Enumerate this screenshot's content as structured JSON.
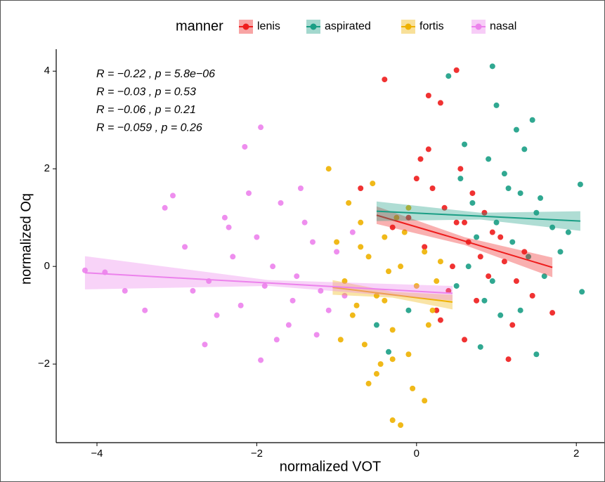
{
  "chart_data": {
    "type": "scatter",
    "x_label": "normalized VOT",
    "y_label": "normalized Oq",
    "legend_title": "manner",
    "legend": "top",
    "xlim": [
      -4.51,
      2.35
    ],
    "ylim": [
      -3.61,
      4.45
    ],
    "xticks": [
      {
        "value": -4,
        "label": "−4"
      },
      {
        "value": -2,
        "label": "−2"
      },
      0,
      2
    ],
    "yticks": [
      {
        "value": -2,
        "label": "−2"
      },
      0,
      2,
      4
    ],
    "grid": false,
    "series": [
      {
        "name": "lenis",
        "color": "#ee1c1c",
        "annotation": "R = −0.22 , p = 5.8e−06",
        "x": [
          -0.4,
          0.5,
          0.15,
          0.3,
          1.15,
          1.7,
          -0.7,
          0.6,
          0.05,
          0.2,
          0.35,
          0.5,
          0.65,
          0.8,
          0.95,
          1.1,
          1.25,
          0.4,
          0.1,
          -0.1,
          0.7,
          0.9,
          1.05,
          0.25,
          0.55,
          0.75,
          1.35,
          -0.3,
          0.0,
          0.45,
          0.85,
          1.2,
          0.6,
          0.3,
          0.15,
          1.45
        ],
        "y": [
          3.83,
          4.02,
          3.5,
          3.35,
          -1.9,
          -0.95,
          1.6,
          -1.5,
          2.2,
          1.6,
          1.2,
          0.9,
          0.5,
          0.2,
          0.7,
          0.1,
          -0.3,
          -0.5,
          0.4,
          1.0,
          1.5,
          -0.2,
          0.6,
          -0.9,
          2.0,
          -0.7,
          0.3,
          0.8,
          1.8,
          0.0,
          1.1,
          -1.2,
          0.9,
          -1.1,
          2.4,
          -0.6
        ],
        "fit": {
          "x": [
            -0.5,
            0.6,
            1.7
          ],
          "y": [
            1.05,
            0.52,
            -0.02
          ],
          "lower": [
            0.87,
            0.44,
            -0.22
          ],
          "upper": [
            1.23,
            0.6,
            0.18
          ]
        }
      },
      {
        "name": "aspirated",
        "color": "#1a9e85",
        "annotation": "R = −0.03 , p = 0.53",
        "x": [
          0.95,
          0.4,
          2.05,
          2.07,
          -0.35,
          -0.5,
          0.8,
          1.5,
          0.6,
          0.9,
          1.1,
          1.3,
          1.5,
          1.7,
          0.7,
          1.0,
          1.2,
          1.4,
          1.6,
          0.5,
          0.85,
          1.05,
          1.25,
          1.45,
          1.8,
          0.75,
          1.15,
          1.35,
          0.65,
          0.95,
          1.55,
          1.9,
          0.55,
          1.0,
          1.3,
          -0.1
        ],
        "y": [
          4.1,
          3.9,
          1.68,
          -0.52,
          -1.75,
          -1.2,
          -1.65,
          -1.8,
          2.5,
          2.2,
          1.9,
          1.5,
          1.1,
          0.8,
          1.3,
          0.9,
          0.5,
          0.2,
          -0.2,
          -0.4,
          -0.7,
          -1.0,
          2.8,
          3.0,
          0.3,
          0.6,
          1.6,
          2.4,
          0.0,
          -0.3,
          1.4,
          0.7,
          1.8,
          3.3,
          -0.9,
          -0.9
        ],
        "fit": {
          "x": [
            -0.5,
            0.8,
            2.05
          ],
          "y": [
            1.13,
            1.03,
            0.93
          ],
          "lower": [
            0.93,
            0.96,
            0.73
          ],
          "upper": [
            1.33,
            1.1,
            1.13
          ]
        }
      },
      {
        "name": "fortis",
        "color": "#eeb100",
        "annotation": "R = −0.06 , p = 0.21",
        "x": [
          -1.1,
          -0.2,
          -0.3,
          0.1,
          -0.6,
          -1.0,
          -0.9,
          -0.8,
          -0.7,
          -0.6,
          -0.5,
          -0.4,
          -0.3,
          -0.2,
          -0.1,
          0.0,
          0.1,
          0.2,
          0.3,
          -0.85,
          -0.65,
          -0.45,
          -0.25,
          -0.05,
          0.15,
          -0.55,
          -0.35,
          -0.15,
          -0.75,
          -0.95,
          0.25,
          -0.5,
          -0.3,
          -0.1,
          -0.7,
          -0.4
        ],
        "y": [
          2.0,
          -3.25,
          -3.15,
          -2.75,
          -2.4,
          0.5,
          -0.3,
          -1.0,
          0.9,
          0.2,
          -0.6,
          0.6,
          -1.3,
          0.0,
          -1.8,
          -0.4,
          0.3,
          -0.9,
          0.1,
          1.3,
          -1.6,
          -2.0,
          1.0,
          -2.5,
          -1.2,
          1.7,
          -0.1,
          0.7,
          -0.8,
          -1.5,
          -0.3,
          -2.2,
          -1.9,
          1.2,
          0.4,
          -0.7
        ],
        "fit": {
          "x": [
            -1.05,
            -0.3,
            0.45
          ],
          "y": [
            -0.43,
            -0.58,
            -0.73
          ],
          "lower": [
            -0.58,
            -0.64,
            -0.88
          ],
          "upper": [
            -0.28,
            -0.52,
            -0.58
          ]
        }
      },
      {
        "name": "nasal",
        "color": "#ec82ec",
        "annotation": "R = −0.059 , p = 0.26",
        "x": [
          -4.15,
          -3.9,
          -3.65,
          -3.4,
          -3.15,
          -3.05,
          -2.15,
          -1.95,
          -2.65,
          -1.95,
          -2.9,
          -2.6,
          -2.4,
          -2.2,
          -2.0,
          -1.8,
          -1.6,
          -1.4,
          -1.2,
          -1.0,
          -2.5,
          -2.3,
          -2.1,
          -1.9,
          -1.7,
          -1.5,
          -1.3,
          -1.1,
          -0.9,
          -2.8,
          -1.75,
          -1.45,
          -1.25,
          -0.8,
          -2.35,
          -1.55
        ],
        "y": [
          -0.08,
          -0.12,
          -0.5,
          -0.9,
          1.2,
          1.45,
          2.45,
          2.85,
          -1.6,
          -1.92,
          0.4,
          -0.3,
          1.0,
          -0.8,
          0.6,
          0.0,
          -1.2,
          0.9,
          -0.5,
          0.3,
          -1.0,
          0.2,
          1.5,
          -0.4,
          1.3,
          -0.2,
          0.5,
          -0.9,
          -0.6,
          -0.5,
          -1.5,
          1.6,
          -1.4,
          0.7,
          0.8,
          -0.7
        ],
        "fit": {
          "x": [
            -4.15,
            -1.85,
            0.45
          ],
          "y": [
            -0.13,
            -0.34,
            -0.55
          ],
          "lower": [
            -0.47,
            -0.4,
            -0.7
          ],
          "upper": [
            0.21,
            -0.28,
            -0.4
          ]
        }
      }
    ]
  }
}
